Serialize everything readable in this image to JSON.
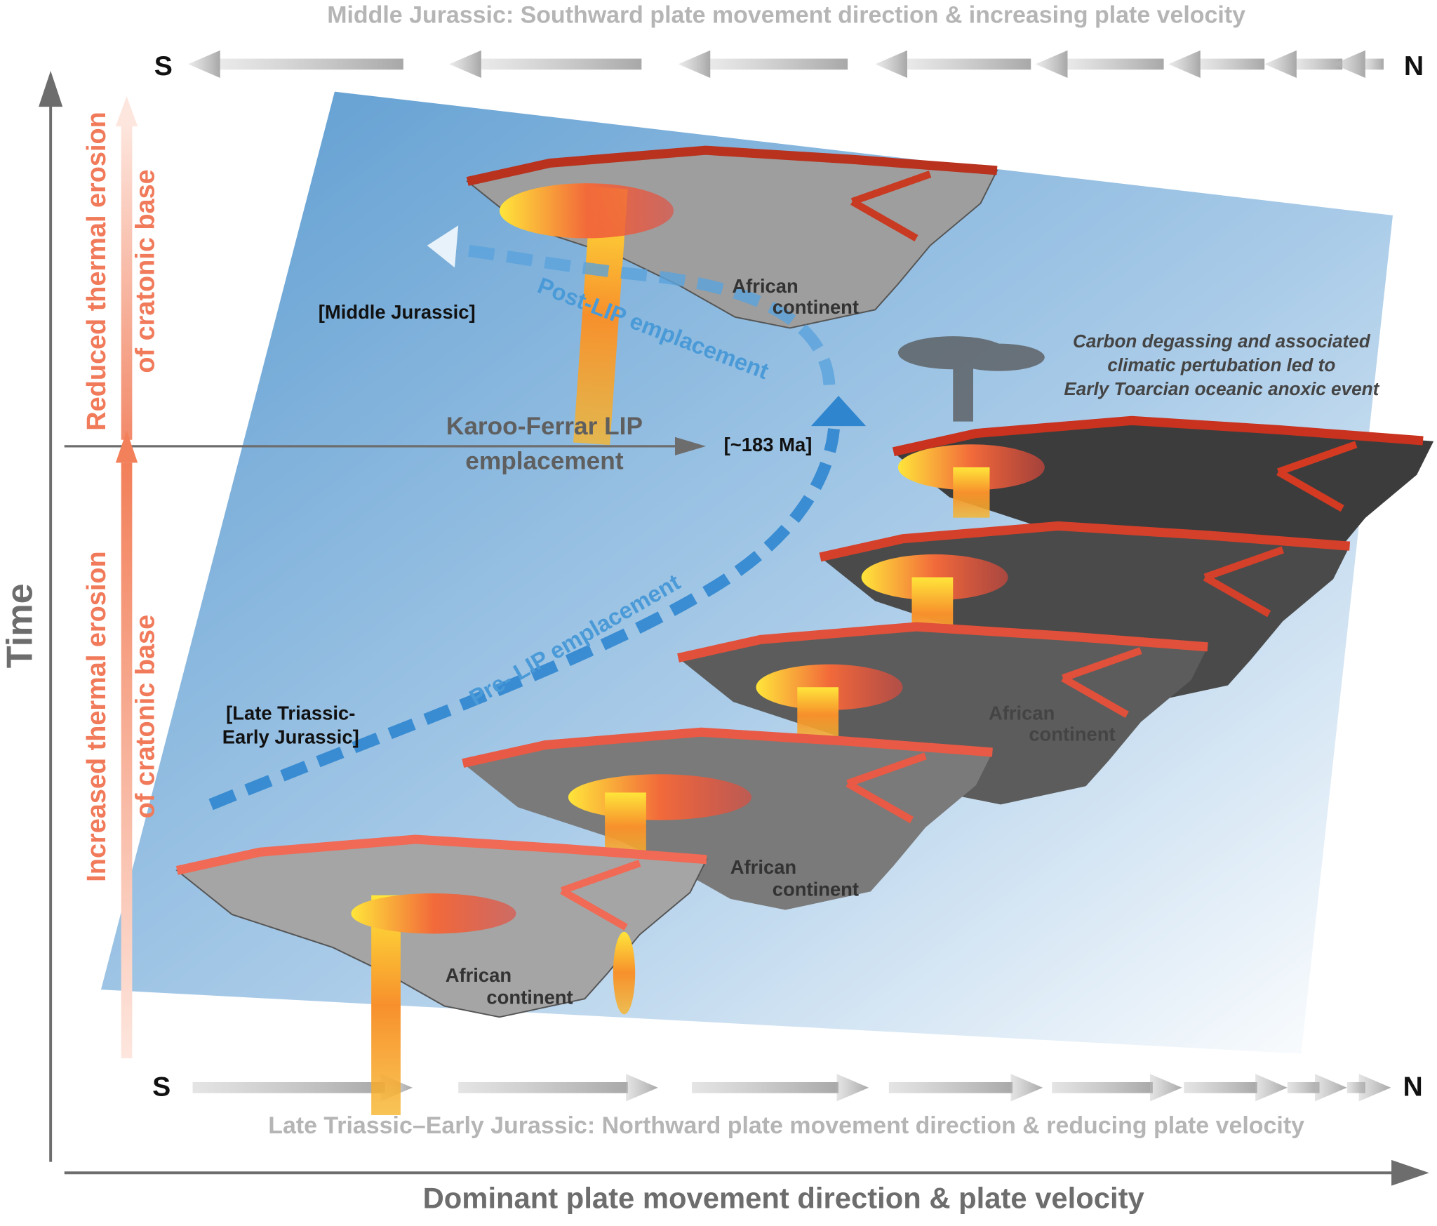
{
  "top_banner": "Middle Jurassic: Southward plate movement direction & increasing plate velocity",
  "bottom_banner": "Late Triassic–Early Jurassic: Northward plate movement direction & reducing plate velocity",
  "top_axis": {
    "left": "S",
    "right": "N"
  },
  "bottom_axis": {
    "left": "S",
    "right": "N"
  },
  "y_axis_label": "Time",
  "x_axis_label": "Dominant plate movement direction & plate velocity",
  "erosion": {
    "reduced": [
      "Reduced thermal erosion",
      "of cratonic base"
    ],
    "increased": [
      "Increased thermal erosion",
      "of cratonic base"
    ]
  },
  "event": {
    "label": [
      "Karoo-Ferrar LIP",
      "emplacement"
    ],
    "age": "[~183 Ma]"
  },
  "periods": {
    "middle": "[Middle Jurassic]",
    "late": [
      "[Late Triassic-",
      "Early Jurassic]"
    ]
  },
  "phases": {
    "post": "Post-LIP emplacement",
    "pre": "Pre- LIP emplacement"
  },
  "degassing": [
    "Carbon degassing and associated",
    "climatic pertubation led to",
    "Early Toarcian oceanic anoxic event"
  ],
  "continent_labels": [
    [
      "African",
      "continent"
    ],
    [
      "African",
      "continent"
    ],
    [
      "African",
      "continent"
    ],
    [
      "African",
      "continent"
    ]
  ]
}
